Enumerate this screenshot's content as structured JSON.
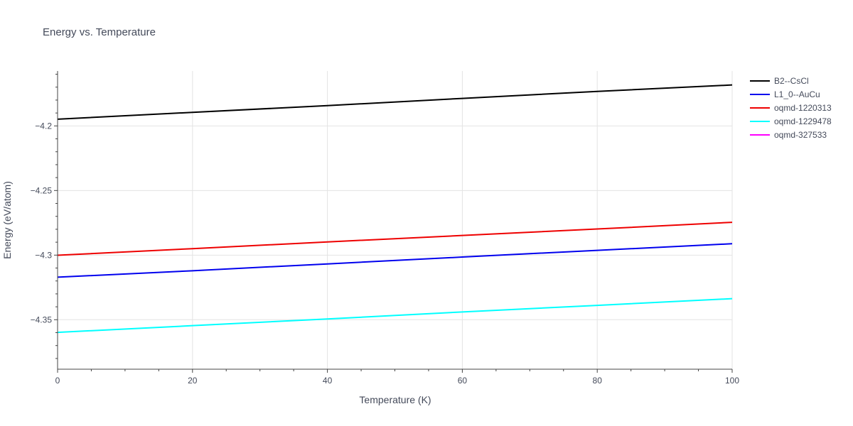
{
  "chart_data": {
    "type": "line",
    "title": "Energy vs. Temperature",
    "xlabel": "Temperature (K)",
    "ylabel": "Energy (eV/atom)",
    "xlim": [
      0,
      100
    ],
    "ylim": [
      -4.3883,
      -4.1575
    ],
    "x_ticks": [
      0,
      20,
      40,
      60,
      80,
      100
    ],
    "x_tick_labels": [
      "0",
      "20",
      "40",
      "60",
      "80",
      "100"
    ],
    "y_ticks": [
      -4.2,
      -4.25,
      -4.3,
      -4.35
    ],
    "y_tick_labels": [
      "−4.2",
      "−4.25",
      "−4.3",
      "−4.35"
    ],
    "grid": true,
    "legend_position": "top-right outside",
    "series": [
      {
        "name": "B2--CsCl",
        "color": "#000000",
        "x": [
          0,
          20,
          40,
          60,
          80,
          100
        ],
        "y": [
          -4.1948,
          -4.1895,
          -4.1843,
          -4.1787,
          -4.1733,
          -4.1683
        ]
      },
      {
        "name": "L1_0--AuCu",
        "color": "#0000ee",
        "x": [
          0,
          20,
          40,
          60,
          80,
          100
        ],
        "y": [
          -4.3171,
          -4.3121,
          -4.3068,
          -4.3015,
          -4.2963,
          -4.2912
        ]
      },
      {
        "name": "oqmd-1220313",
        "color": "#ee0000",
        "x": [
          0,
          20,
          40,
          60,
          80,
          100
        ],
        "y": [
          -4.3001,
          -4.295,
          -4.2898,
          -4.2848,
          -4.2798,
          -4.2746
        ]
      },
      {
        "name": "oqmd-1229478",
        "color": "#00ffff",
        "x": [
          0,
          20,
          40,
          60,
          80,
          100
        ],
        "y": [
          -4.3598,
          -4.3546,
          -4.3494,
          -4.344,
          -4.3389,
          -4.3337
        ]
      },
      {
        "name": "oqmd-327533",
        "color": "#ff00ff",
        "x": [],
        "y": []
      }
    ]
  }
}
